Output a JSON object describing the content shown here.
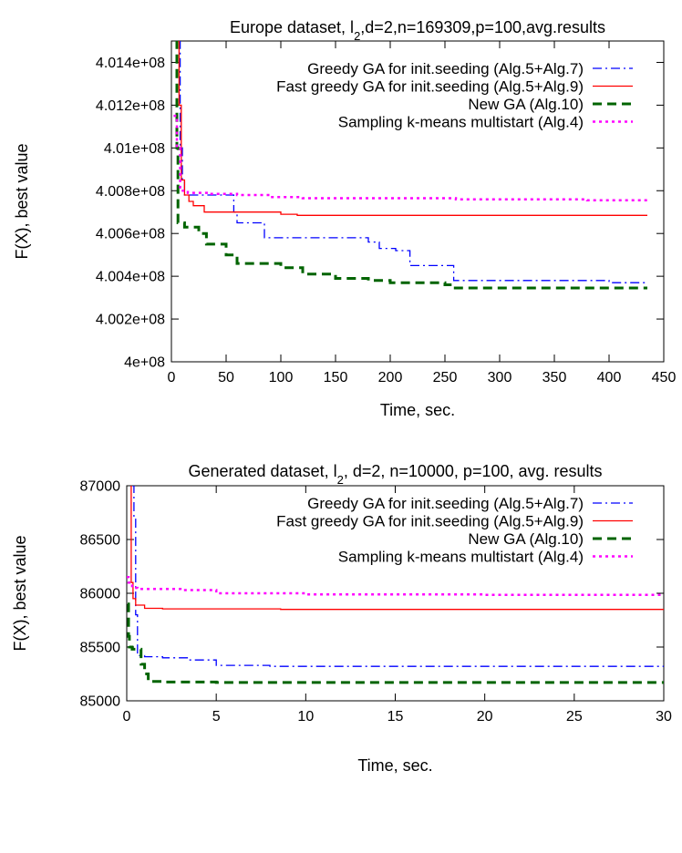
{
  "chart_data": [
    {
      "type": "line",
      "title": "Europe dataset, l",
      "title_sub": "2",
      "title_rest": ",d=2,n=169309,p=100,avg.results",
      "xlabel": "Time, sec.",
      "ylabel": "F(X), best value",
      "xlim": [
        0,
        450
      ],
      "ylim": [
        400000000,
        401500000
      ],
      "xticks": [
        0,
        50,
        100,
        150,
        200,
        250,
        300,
        350,
        400,
        450
      ],
      "xtick_labels": [
        "0",
        "50",
        "100",
        "150",
        "200",
        "250",
        "300",
        "350",
        "400",
        "450"
      ],
      "yticks": [
        400000000,
        400200000,
        400400000,
        400600000,
        400800000,
        401000000,
        401200000,
        401400000
      ],
      "ytick_labels": [
        "4e+08",
        "4.002e+08",
        "4.004e+08",
        "4.006e+08",
        "4.008e+08",
        "4.01e+08",
        "4.012e+08",
        "4.014e+08"
      ],
      "grid": false,
      "legend_position": "top-right",
      "series": [
        {
          "name": "Greedy GA for init.seeding (Alg.5+Alg.7)",
          "color": "#0000ff",
          "style": "dashdot",
          "x": [
            7,
            8,
            10,
            12,
            25,
            57,
            60,
            80,
            85,
            120,
            180,
            190,
            205,
            215,
            218,
            255,
            258,
            300,
            400,
            435
          ],
          "y": [
            401500000,
            401000000,
            400850000,
            400780000,
            400780000,
            400700000,
            400650000,
            400650000,
            400580000,
            400580000,
            400560000,
            400530000,
            400520000,
            400520000,
            400450000,
            400450000,
            400380000,
            400380000,
            400370000,
            400370000
          ]
        },
        {
          "name": "Fast greedy GA for init.seeding (Alg.5+Alg.9)",
          "color": "#ff0000",
          "style": "solid",
          "x": [
            6,
            7,
            9,
            12,
            16,
            20,
            30,
            60,
            100,
            115,
            435
          ],
          "y": [
            401500000,
            401200000,
            400850000,
            400780000,
            400750000,
            400730000,
            400700000,
            400700000,
            400690000,
            400685000,
            400685000
          ]
        },
        {
          "name": "New GA (Alg.10)",
          "color": "#006400",
          "style": "dashed",
          "x": [
            4,
            5,
            6,
            12,
            25,
            32,
            50,
            60,
            100,
            120,
            150,
            180,
            200,
            250,
            258,
            400,
            435
          ],
          "y": [
            401500000,
            401000000,
            400650000,
            400630000,
            400600000,
            400550000,
            400500000,
            400460000,
            400440000,
            400410000,
            400390000,
            400380000,
            400370000,
            400360000,
            400345000,
            400345000,
            400345000
          ]
        },
        {
          "name": "Sampling k-means multistart (Alg.4)",
          "color": "#ff00ff",
          "style": "dotted",
          "x": [
            2,
            5,
            8,
            15,
            35,
            60,
            90,
            120,
            200,
            260,
            300,
            380,
            435
          ],
          "y": [
            401150000,
            401000000,
            400800000,
            400790000,
            400785000,
            400780000,
            400770000,
            400765000,
            400765000,
            400760000,
            400760000,
            400755000,
            400755000
          ]
        }
      ]
    },
    {
      "type": "line",
      "title": "Generated dataset, l",
      "title_sub": "2",
      "title_rest": ",  d=2, n=10000, p=100, avg. results",
      "xlabel": "Time, sec.",
      "ylabel": "F(X), best value",
      "xlim": [
        0,
        30
      ],
      "ylim": [
        85000,
        87000
      ],
      "xticks": [
        0,
        5,
        10,
        15,
        20,
        25,
        30
      ],
      "xtick_labels": [
        "0",
        "5",
        "10",
        "15",
        "20",
        "25",
        "30"
      ],
      "yticks": [
        85000,
        85500,
        86000,
        86500,
        87000
      ],
      "ytick_labels": [
        "85000",
        "85500",
        "86000",
        "86500",
        "87000"
      ],
      "grid": false,
      "legend_position": "top-right",
      "series": [
        {
          "name": "Greedy GA for init.seeding (Alg.5+Alg.7)",
          "color": "#0000ff",
          "style": "dashdot",
          "x": [
            0.3,
            0.4,
            0.5,
            0.6,
            1.0,
            2.0,
            3.5,
            5.0,
            8.0,
            15.0,
            30.0
          ],
          "y": [
            87000,
            86700,
            85800,
            85420,
            85410,
            85400,
            85380,
            85330,
            85320,
            85320,
            85320
          ]
        },
        {
          "name": "Fast greedy GA for init.seeding (Alg.5+Alg.9)",
          "color": "#ff0000",
          "style": "solid",
          "x": [
            0.2,
            0.25,
            0.35,
            0.5,
            1.0,
            2.0,
            8.5,
            8.6,
            30.0
          ],
          "y": [
            87000,
            86100,
            85950,
            85890,
            85860,
            85855,
            85855,
            85850,
            85850
          ]
        },
        {
          "name": "New GA (Alg.10)",
          "color": "#006400",
          "style": "dashed",
          "x": [
            0.05,
            0.1,
            0.15,
            0.3,
            0.8,
            1.0,
            1.2,
            2.0,
            5.0,
            30.0
          ],
          "y": [
            85900,
            85600,
            85500,
            85480,
            85340,
            85250,
            85180,
            85175,
            85170,
            85170
          ]
        },
        {
          "name": "Sampling k-means multistart (Alg.4)",
          "color": "#ff00ff",
          "style": "dotted",
          "x": [
            0.0,
            0.1,
            0.3,
            0.6,
            3.0,
            5.0,
            10.0,
            20.0,
            30.0
          ],
          "y": [
            86150,
            86100,
            86050,
            86040,
            86030,
            86000,
            85990,
            85985,
            85985
          ]
        }
      ]
    }
  ]
}
